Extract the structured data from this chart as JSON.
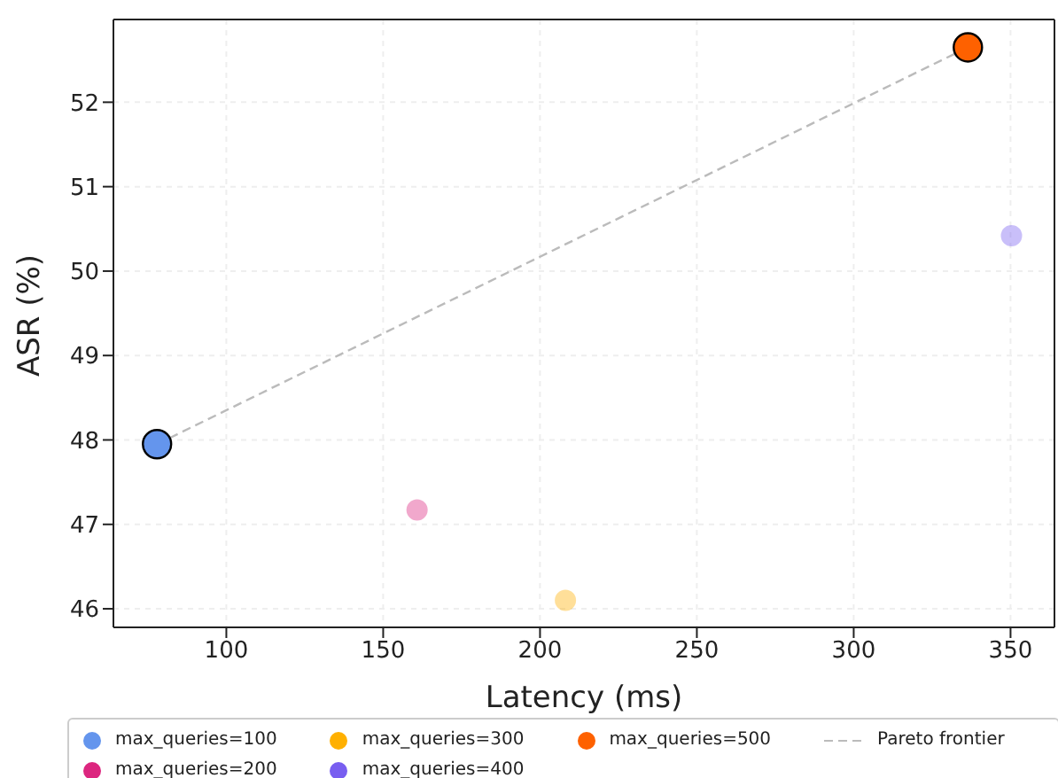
{
  "chart_data": {
    "type": "scatter",
    "xlabel": "Latency (ms)",
    "ylabel": "ASR (%)",
    "xlim": [
      64,
      364
    ],
    "xticks": [
      100,
      150,
      200,
      250,
      300,
      350
    ],
    "ylim": [
      45.78,
      52.98
    ],
    "yticks": [
      46,
      47,
      48,
      49,
      50,
      51,
      52
    ],
    "grid": true,
    "legend": "bottom",
    "marker": "circle",
    "series": [
      {
        "name": "max_queries=100",
        "color": "#6495ed",
        "x": [
          77.9
        ],
        "values": [
          47.95
        ]
      },
      {
        "name": "max_queries=200",
        "color": "#dc267f",
        "x": [
          160.8
        ],
        "values": [
          47.17
        ]
      },
      {
        "name": "max_queries=300",
        "color": "#ffb000",
        "x": [
          208.1
        ],
        "values": [
          46.1
        ]
      },
      {
        "name": "max_queries=400",
        "color": "#785ef0",
        "x": [
          350.3
        ],
        "values": [
          50.42
        ]
      },
      {
        "name": "max_queries=500",
        "color": "#fe6100",
        "x": [
          336.4
        ],
        "values": [
          52.65
        ]
      },
      {
        "name": "Pareto frontier",
        "type": "line",
        "line_style": "dashed",
        "marker": "none",
        "color": "#bbbbbb",
        "x": [
          77.9,
          336.4
        ],
        "values": [
          47.95,
          52.65
        ]
      }
    ]
  }
}
